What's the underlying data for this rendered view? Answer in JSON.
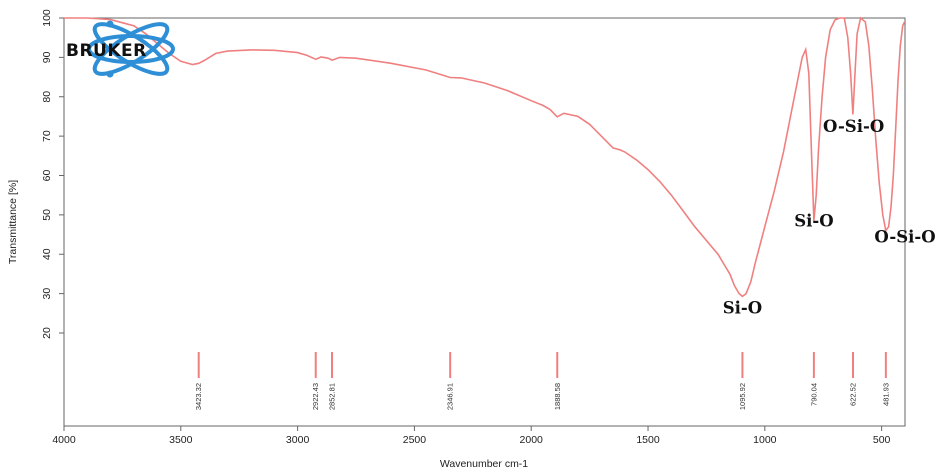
{
  "chart_data": {
    "type": "line",
    "xlabel": "Wavenumber cm-1",
    "ylabel": "Transmittance [%]",
    "xlim": [
      4000,
      400
    ],
    "ylim": [
      0,
      100
    ],
    "x_reversed": true,
    "x_ticks": [
      4000,
      3500,
      3000,
      2500,
      2000,
      1500,
      1000,
      500
    ],
    "y_ticks": [
      20,
      30,
      40,
      50,
      60,
      70,
      80,
      90,
      100
    ],
    "grid": false,
    "line_color": "#f08080",
    "series": [
      {
        "points": [
          [
            4000,
            100.5
          ],
          [
            3900,
            100.3
          ],
          [
            3800,
            99.6
          ],
          [
            3700,
            98.0
          ],
          [
            3650,
            96.0
          ],
          [
            3600,
            93.5
          ],
          [
            3550,
            91.0
          ],
          [
            3500,
            89.0
          ],
          [
            3450,
            88.2
          ],
          [
            3423,
            88.5
          ],
          [
            3400,
            89.2
          ],
          [
            3350,
            91.0
          ],
          [
            3300,
            91.6
          ],
          [
            3200,
            91.9
          ],
          [
            3100,
            91.8
          ],
          [
            3000,
            91.2
          ],
          [
            2960,
            90.5
          ],
          [
            2922,
            89.5
          ],
          [
            2900,
            90.1
          ],
          [
            2870,
            89.8
          ],
          [
            2852,
            89.3
          ],
          [
            2820,
            90.0
          ],
          [
            2750,
            89.8
          ],
          [
            2600,
            88.5
          ],
          [
            2450,
            86.8
          ],
          [
            2347,
            84.9
          ],
          [
            2300,
            84.8
          ],
          [
            2200,
            83.5
          ],
          [
            2100,
            81.5
          ],
          [
            2000,
            79.0
          ],
          [
            1950,
            77.8
          ],
          [
            1920,
            76.8
          ],
          [
            1889,
            74.9
          ],
          [
            1860,
            75.8
          ],
          [
            1800,
            75.0
          ],
          [
            1750,
            73.0
          ],
          [
            1700,
            70.0
          ],
          [
            1650,
            67.0
          ],
          [
            1620,
            66.5
          ],
          [
            1600,
            66.0
          ],
          [
            1550,
            64.0
          ],
          [
            1500,
            61.5
          ],
          [
            1450,
            58.5
          ],
          [
            1400,
            55.0
          ],
          [
            1350,
            51.0
          ],
          [
            1300,
            47.0
          ],
          [
            1250,
            43.5
          ],
          [
            1200,
            40.0
          ],
          [
            1170,
            37.0
          ],
          [
            1150,
            35.0
          ],
          [
            1130,
            32.0
          ],
          [
            1110,
            30.0
          ],
          [
            1096,
            29.3
          ],
          [
            1080,
            30.0
          ],
          [
            1060,
            33.0
          ],
          [
            1040,
            38.0
          ],
          [
            1000,
            47.0
          ],
          [
            960,
            56.0
          ],
          [
            920,
            66.0
          ],
          [
            890,
            75.0
          ],
          [
            860,
            84.0
          ],
          [
            840,
            90.0
          ],
          [
            825,
            92.0
          ],
          [
            812,
            86.0
          ],
          [
            800,
            65.0
          ],
          [
            790,
            48.5
          ],
          [
            780,
            55.0
          ],
          [
            770,
            67.0
          ],
          [
            755,
            80.0
          ],
          [
            740,
            90.0
          ],
          [
            720,
            97.0
          ],
          [
            700,
            99.5
          ],
          [
            680,
            100.5
          ],
          [
            660,
            100.0
          ],
          [
            645,
            95.0
          ],
          [
            633,
            86.0
          ],
          [
            623,
            75.5
          ],
          [
            615,
            85.0
          ],
          [
            605,
            96.0
          ],
          [
            590,
            101.0
          ],
          [
            570,
            99.0
          ],
          [
            555,
            93.0
          ],
          [
            540,
            82.0
          ],
          [
            525,
            69.0
          ],
          [
            510,
            58.0
          ],
          [
            495,
            50.0
          ],
          [
            482,
            46.0
          ],
          [
            470,
            47.0
          ],
          [
            460,
            52.0
          ],
          [
            450,
            60.0
          ],
          [
            440,
            72.0
          ],
          [
            430,
            84.0
          ],
          [
            420,
            93.0
          ],
          [
            410,
            98.0
          ],
          [
            402,
            99.0
          ]
        ]
      }
    ],
    "peak_markers": [
      {
        "x": 3423.32,
        "label": "3423.32"
      },
      {
        "x": 2922.43,
        "label": "2922.43"
      },
      {
        "x": 2852.81,
        "label": "2852.81"
      },
      {
        "x": 2346.91,
        "label": "2346.91"
      },
      {
        "x": 1888.58,
        "label": "1888.58"
      },
      {
        "x": 1095.92,
        "label": "1095.92"
      },
      {
        "x": 790.04,
        "label": "790.04"
      },
      {
        "x": 622.52,
        "label": "622.52"
      },
      {
        "x": 481.93,
        "label": "481.93"
      }
    ],
    "annotations": [
      {
        "text": "Si-O",
        "x": 1096,
        "y": 25
      },
      {
        "text": "Si-O",
        "x": 790,
        "y": 47
      },
      {
        "text": "O-Si-O",
        "x": 620,
        "y": 71
      },
      {
        "text": "O-Si-O",
        "x": 400,
        "y": 43
      }
    ],
    "logo": {
      "text": "BRUKER"
    }
  }
}
